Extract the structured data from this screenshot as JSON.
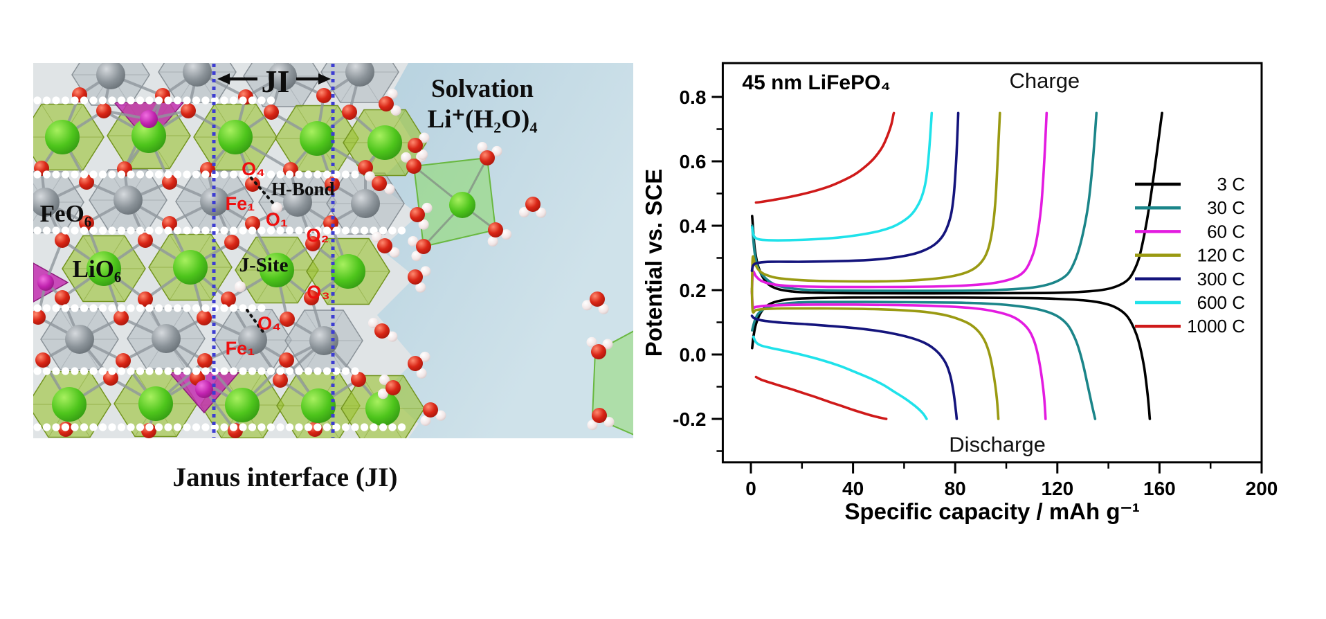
{
  "left_panel": {
    "ji_label": "JI",
    "solvation_line1": "Solvation",
    "solvation_line2": "Li⁺(H₂O)₄",
    "labels": {
      "feo6": "FeO₆",
      "lio6": "LiO₆",
      "j_site": "J-Site",
      "h_bond": "H-Bond",
      "o4_top": "O₄",
      "fe1_top": "Fe₁",
      "o1": "O₁",
      "o2": "O₂",
      "o3": "O₃",
      "o4_bottom": "O₄",
      "fe1_bottom": "Fe₁"
    },
    "caption": "Janus interface (JI)"
  },
  "chart_data": {
    "type": "line",
    "title": "45 nm LiFePO₄",
    "xlabel": "Specific capacity / mAh g⁻¹",
    "ylabel": "Potential vs. SCE",
    "xlim": [
      -11,
      200
    ],
    "ylim": [
      -0.335,
      0.905
    ],
    "xticks": [
      "0",
      "40",
      "80",
      "120",
      "160",
      "200"
    ],
    "xtick_values": [
      0,
      40,
      80,
      120,
      160,
      200
    ],
    "x_minor_values": [
      20,
      60,
      100,
      140,
      180
    ],
    "yticks": [
      "-0.2",
      "0.0",
      "0.2",
      "0.4",
      "0.6",
      "0.8"
    ],
    "ytick_values": [
      -0.2,
      0.0,
      0.2,
      0.4,
      0.6,
      0.8
    ],
    "y_minor_values": [
      -0.3,
      -0.1,
      0.1,
      0.3,
      0.5,
      0.7
    ],
    "grid": false,
    "legend_position": "right-inside",
    "annotations": [
      {
        "text": "Charge",
        "x": 115,
        "y": 0.852
      },
      {
        "text": "Discharge",
        "x": 96.5,
        "y": -0.278
      }
    ],
    "series": [
      {
        "name": "3 C",
        "color": "#000000",
        "charge": [
          [
            0.5,
            0.43
          ],
          [
            1.5,
            0.33
          ],
          [
            3,
            0.27
          ],
          [
            6,
            0.225
          ],
          [
            10,
            0.205
          ],
          [
            16,
            0.196
          ],
          [
            25,
            0.192
          ],
          [
            50,
            0.19
          ],
          [
            90,
            0.19
          ],
          [
            115,
            0.191
          ],
          [
            128,
            0.194
          ],
          [
            136,
            0.199
          ],
          [
            141,
            0.206
          ],
          [
            145,
            0.218
          ],
          [
            148,
            0.235
          ],
          [
            150,
            0.26
          ],
          [
            152,
            0.3
          ],
          [
            154,
            0.37
          ],
          [
            156,
            0.46
          ],
          [
            158,
            0.57
          ],
          [
            159.5,
            0.66
          ],
          [
            160.5,
            0.72
          ],
          [
            161,
            0.75
          ]
        ],
        "discharge": [
          [
            0.5,
            0.02
          ],
          [
            1,
            0.055
          ],
          [
            2,
            0.095
          ],
          [
            4,
            0.132
          ],
          [
            7,
            0.155
          ],
          [
            12,
            0.168
          ],
          [
            20,
            0.174
          ],
          [
            40,
            0.177
          ],
          [
            80,
            0.177
          ],
          [
            110,
            0.175
          ],
          [
            125,
            0.171
          ],
          [
            134,
            0.165
          ],
          [
            140,
            0.155
          ],
          [
            144,
            0.141
          ],
          [
            147,
            0.122
          ],
          [
            149,
            0.098
          ],
          [
            151,
            0.062
          ],
          [
            152.5,
            0.02
          ],
          [
            154,
            -0.04
          ],
          [
            155,
            -0.1
          ],
          [
            155.8,
            -0.16
          ],
          [
            156.2,
            -0.2
          ]
        ]
      },
      {
        "name": "30 C",
        "color": "#1b8589",
        "charge": [
          [
            0.5,
            0.4
          ],
          [
            1.5,
            0.315
          ],
          [
            3,
            0.265
          ],
          [
            6,
            0.235
          ],
          [
            10,
            0.215
          ],
          [
            16,
            0.205
          ],
          [
            25,
            0.2
          ],
          [
            50,
            0.198
          ],
          [
            80,
            0.198
          ],
          [
            95,
            0.2
          ],
          [
            105,
            0.204
          ],
          [
            112,
            0.21
          ],
          [
            117,
            0.219
          ],
          [
            121,
            0.232
          ],
          [
            124,
            0.25
          ],
          [
            126,
            0.275
          ],
          [
            128,
            0.315
          ],
          [
            130,
            0.375
          ],
          [
            132,
            0.46
          ],
          [
            133.5,
            0.565
          ],
          [
            134.7,
            0.68
          ],
          [
            135.3,
            0.75
          ]
        ],
        "discharge": [
          [
            0.5,
            0.075
          ],
          [
            1.5,
            0.105
          ],
          [
            3,
            0.128
          ],
          [
            6,
            0.145
          ],
          [
            10,
            0.154
          ],
          [
            16,
            0.16
          ],
          [
            25,
            0.163
          ],
          [
            50,
            0.163
          ],
          [
            80,
            0.161
          ],
          [
            95,
            0.157
          ],
          [
            105,
            0.15
          ],
          [
            112,
            0.141
          ],
          [
            117,
            0.13
          ],
          [
            121,
            0.114
          ],
          [
            124,
            0.092
          ],
          [
            126,
            0.066
          ],
          [
            128,
            0.028
          ],
          [
            130,
            -0.028
          ],
          [
            132,
            -0.1
          ],
          [
            133.5,
            -0.155
          ],
          [
            134.8,
            -0.2
          ]
        ]
      },
      {
        "name": "60 C",
        "color": "#e31be0",
        "charge": [
          [
            0.4,
            0.19
          ],
          [
            0.8,
            0.255
          ],
          [
            2,
            0.243
          ],
          [
            4,
            0.229
          ],
          [
            8,
            0.219
          ],
          [
            15,
            0.213
          ],
          [
            30,
            0.21
          ],
          [
            60,
            0.21
          ],
          [
            80,
            0.213
          ],
          [
            92,
            0.219
          ],
          [
            99,
            0.228
          ],
          [
            104,
            0.241
          ],
          [
            107,
            0.258
          ],
          [
            109,
            0.283
          ],
          [
            111,
            0.325
          ],
          [
            112.5,
            0.385
          ],
          [
            113.8,
            0.47
          ],
          [
            114.8,
            0.59
          ],
          [
            115.5,
            0.7
          ],
          [
            115.8,
            0.75
          ]
        ],
        "discharge": [
          [
            0.4,
            0.195
          ],
          [
            0.8,
            0.148
          ],
          [
            2,
            0.148
          ],
          [
            5,
            0.151
          ],
          [
            10,
            0.153
          ],
          [
            25,
            0.155
          ],
          [
            55,
            0.154
          ],
          [
            75,
            0.15
          ],
          [
            88,
            0.143
          ],
          [
            96,
            0.133
          ],
          [
            102,
            0.119
          ],
          [
            106,
            0.1
          ],
          [
            109,
            0.074
          ],
          [
            111,
            0.04
          ],
          [
            112.5,
            -0.005
          ],
          [
            113.8,
            -0.065
          ],
          [
            114.8,
            -0.13
          ],
          [
            115.4,
            -0.2
          ]
        ]
      },
      {
        "name": "120 C",
        "color": "#9a9a12",
        "charge": [
          [
            0.4,
            0.195
          ],
          [
            0.7,
            0.3
          ],
          [
            1.5,
            0.285
          ],
          [
            3,
            0.263
          ],
          [
            6,
            0.247
          ],
          [
            12,
            0.236
          ],
          [
            25,
            0.229
          ],
          [
            45,
            0.227
          ],
          [
            60,
            0.229
          ],
          [
            70,
            0.234
          ],
          [
            78,
            0.242
          ],
          [
            84,
            0.254
          ],
          [
            88,
            0.27
          ],
          [
            91,
            0.295
          ],
          [
            93,
            0.33
          ],
          [
            94.5,
            0.385
          ],
          [
            95.7,
            0.47
          ],
          [
            96.5,
            0.585
          ],
          [
            97.2,
            0.7
          ],
          [
            97.5,
            0.75
          ]
        ],
        "discharge": [
          [
            0.4,
            0.205
          ],
          [
            0.7,
            0.135
          ],
          [
            2,
            0.138
          ],
          [
            5,
            0.141
          ],
          [
            12,
            0.143
          ],
          [
            30,
            0.143
          ],
          [
            52,
            0.14
          ],
          [
            66,
            0.134
          ],
          [
            75,
            0.124
          ],
          [
            81,
            0.111
          ],
          [
            86,
            0.093
          ],
          [
            89.5,
            0.068
          ],
          [
            92,
            0.035
          ],
          [
            93.8,
            -0.01
          ],
          [
            95.2,
            -0.07
          ],
          [
            96.3,
            -0.135
          ],
          [
            96.9,
            -0.2
          ]
        ]
      },
      {
        "name": "300 C",
        "color": "#14147c",
        "charge": [
          [
            0.4,
            0.26
          ],
          [
            1,
            0.278
          ],
          [
            3,
            0.285
          ],
          [
            8,
            0.288
          ],
          [
            20,
            0.288
          ],
          [
            35,
            0.29
          ],
          [
            47,
            0.294
          ],
          [
            56,
            0.301
          ],
          [
            63,
            0.311
          ],
          [
            68,
            0.324
          ],
          [
            72,
            0.342
          ],
          [
            75,
            0.367
          ],
          [
            77,
            0.398
          ],
          [
            78.5,
            0.44
          ],
          [
            79.5,
            0.5
          ],
          [
            80.3,
            0.59
          ],
          [
            80.9,
            0.69
          ],
          [
            81.2,
            0.75
          ]
        ],
        "discharge": [
          [
            0.4,
            0.12
          ],
          [
            1.5,
            0.112
          ],
          [
            5,
            0.105
          ],
          [
            12,
            0.099
          ],
          [
            22,
            0.094
          ],
          [
            32,
            0.088
          ],
          [
            42,
            0.081
          ],
          [
            50,
            0.073
          ],
          [
            57,
            0.063
          ],
          [
            63,
            0.051
          ],
          [
            67.5,
            0.038
          ],
          [
            71,
            0.022
          ],
          [
            74,
            0.0
          ],
          [
            76.5,
            -0.03
          ],
          [
            78.2,
            -0.07
          ],
          [
            79.4,
            -0.12
          ],
          [
            80.2,
            -0.17
          ],
          [
            80.6,
            -0.2
          ]
        ]
      },
      {
        "name": "600 C",
        "color": "#1fe2ea",
        "charge": [
          [
            0.5,
            0.395
          ],
          [
            1.2,
            0.368
          ],
          [
            3,
            0.358
          ],
          [
            7,
            0.355
          ],
          [
            15,
            0.355
          ],
          [
            25,
            0.358
          ],
          [
            34,
            0.363
          ],
          [
            42,
            0.371
          ],
          [
            49,
            0.381
          ],
          [
            55,
            0.395
          ],
          [
            59,
            0.411
          ],
          [
            62.5,
            0.432
          ],
          [
            65,
            0.458
          ],
          [
            67,
            0.492
          ],
          [
            68.5,
            0.54
          ],
          [
            69.6,
            0.615
          ],
          [
            70.4,
            0.7
          ],
          [
            70.8,
            0.75
          ]
        ],
        "discharge": [
          [
            1,
            0.055
          ],
          [
            2,
            0.038
          ],
          [
            4,
            0.028
          ],
          [
            8,
            0.02
          ],
          [
            14,
            0.01
          ],
          [
            21,
            -0.003
          ],
          [
            28,
            -0.018
          ],
          [
            35,
            -0.036
          ],
          [
            41,
            -0.055
          ],
          [
            47,
            -0.075
          ],
          [
            52,
            -0.095
          ],
          [
            56,
            -0.115
          ],
          [
            60,
            -0.135
          ],
          [
            63,
            -0.152
          ],
          [
            65.5,
            -0.168
          ],
          [
            67.5,
            -0.184
          ],
          [
            68.8,
            -0.2
          ]
        ]
      },
      {
        "name": "1000 C",
        "color": "#cf1a1a",
        "charge": [
          [
            2,
            0.472
          ],
          [
            4,
            0.474
          ],
          [
            8,
            0.479
          ],
          [
            13,
            0.486
          ],
          [
            19,
            0.496
          ],
          [
            25,
            0.508
          ],
          [
            31,
            0.523
          ],
          [
            36,
            0.54
          ],
          [
            41,
            0.561
          ],
          [
            45,
            0.585
          ],
          [
            48.5,
            0.612
          ],
          [
            51.5,
            0.645
          ],
          [
            53.5,
            0.68
          ],
          [
            55,
            0.715
          ],
          [
            55.8,
            0.745
          ],
          [
            56,
            0.75
          ]
        ],
        "discharge": [
          [
            2,
            -0.07
          ],
          [
            4,
            -0.078
          ],
          [
            7,
            -0.086
          ],
          [
            11,
            -0.096
          ],
          [
            16,
            -0.108
          ],
          [
            21,
            -0.121
          ],
          [
            26,
            -0.134
          ],
          [
            31,
            -0.148
          ],
          [
            36,
            -0.161
          ],
          [
            40,
            -0.172
          ],
          [
            44,
            -0.182
          ],
          [
            47.5,
            -0.19
          ],
          [
            50.5,
            -0.196
          ],
          [
            53,
            -0.2
          ]
        ]
      }
    ]
  }
}
